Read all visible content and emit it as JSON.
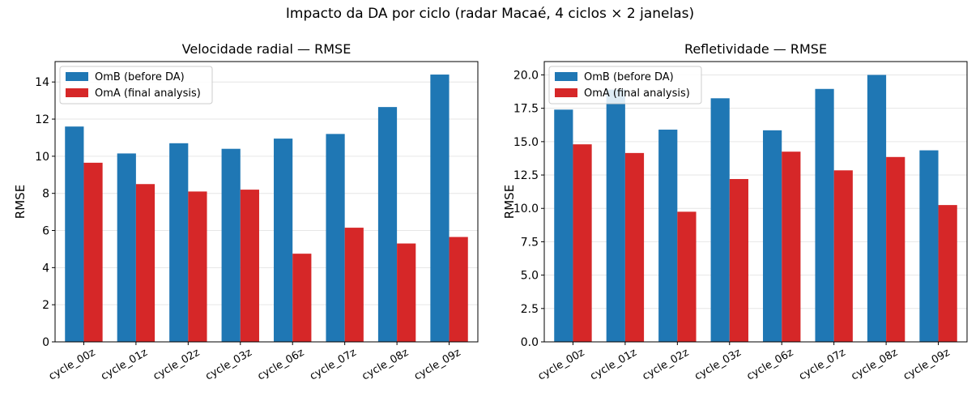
{
  "figure": {
    "suptitle": "Impacto da DA por ciclo (radar Macaé, 4 ciclos × 2 janelas)"
  },
  "colors": {
    "omb": "#1f77b4",
    "oma": "#d62728",
    "grid": "#e6e6e6"
  },
  "chart_data": [
    {
      "type": "bar",
      "title": "Velocidade radial — RMSE",
      "xlabel": "",
      "ylabel": "RMSE",
      "categories": [
        "cycle_00z",
        "cycle_01z",
        "cycle_02z",
        "cycle_03z",
        "cycle_06z",
        "cycle_07z",
        "cycle_08z",
        "cycle_09z"
      ],
      "series": [
        {
          "name": "OmB (before DA)",
          "values": [
            11.6,
            10.15,
            10.7,
            10.4,
            10.95,
            11.2,
            12.65,
            14.4
          ]
        },
        {
          "name": "OmA (final analysis)",
          "values": [
            9.65,
            8.5,
            8.1,
            8.2,
            4.75,
            6.15,
            5.3,
            5.65
          ]
        }
      ],
      "ylim": [
        0,
        15.1
      ],
      "yticks": [
        0,
        2,
        4,
        6,
        8,
        10,
        12,
        14
      ],
      "ytick_labels": [
        "0",
        "2",
        "4",
        "6",
        "8",
        "10",
        "12",
        "14"
      ],
      "grid": "y",
      "legend_position": "top-left"
    },
    {
      "type": "bar",
      "title": "Refletividade — RMSE",
      "xlabel": "",
      "ylabel": "RMSE",
      "categories": [
        "cycle_00z",
        "cycle_01z",
        "cycle_02z",
        "cycle_03z",
        "cycle_06z",
        "cycle_07z",
        "cycle_08z",
        "cycle_09z"
      ],
      "series": [
        {
          "name": "OmB (before DA)",
          "values": [
            17.4,
            18.9,
            15.9,
            18.25,
            15.85,
            18.95,
            20.0,
            14.35
          ]
        },
        {
          "name": "OmA (final analysis)",
          "values": [
            14.8,
            14.15,
            9.75,
            12.2,
            14.25,
            12.85,
            13.85,
            10.25
          ]
        }
      ],
      "ylim": [
        0,
        21.0
      ],
      "yticks": [
        0,
        2.5,
        5,
        7.5,
        10,
        12.5,
        15,
        17.5,
        20
      ],
      "ytick_labels": [
        "0.0",
        "2.5",
        "5.0",
        "7.5",
        "10.0",
        "12.5",
        "15.0",
        "17.5",
        "20.0"
      ],
      "grid": "y",
      "legend_position": "top-left"
    }
  ]
}
